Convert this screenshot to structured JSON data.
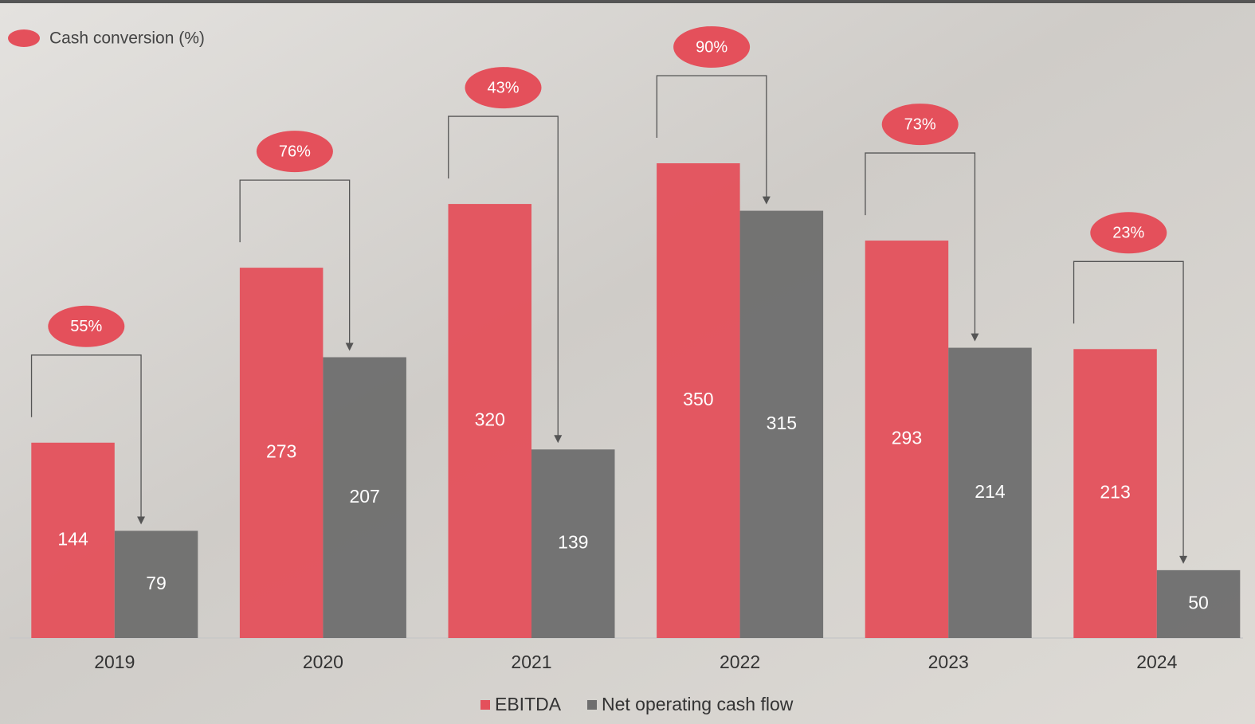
{
  "chart_data": {
    "type": "bar",
    "categories": [
      "2019",
      "2020",
      "2021",
      "2022",
      "2023",
      "2024"
    ],
    "series": [
      {
        "name": "EBITDA",
        "color": "#e4505b",
        "values": [
          144,
          273,
          320,
          350,
          293,
          213
        ]
      },
      {
        "name": "Net operating cash flow",
        "color": "#6e6e6e",
        "values": [
          79,
          207,
          139,
          315,
          214,
          50
        ]
      }
    ],
    "cash_conversion": {
      "name": "Cash conversion (%)",
      "color": "#e4505b",
      "values": [
        55,
        76,
        43,
        90,
        73,
        23
      ],
      "value_labels": [
        "55%",
        "76%",
        "43%",
        "90%",
        "73%",
        "23%"
      ]
    },
    "legend": "bottom"
  }
}
